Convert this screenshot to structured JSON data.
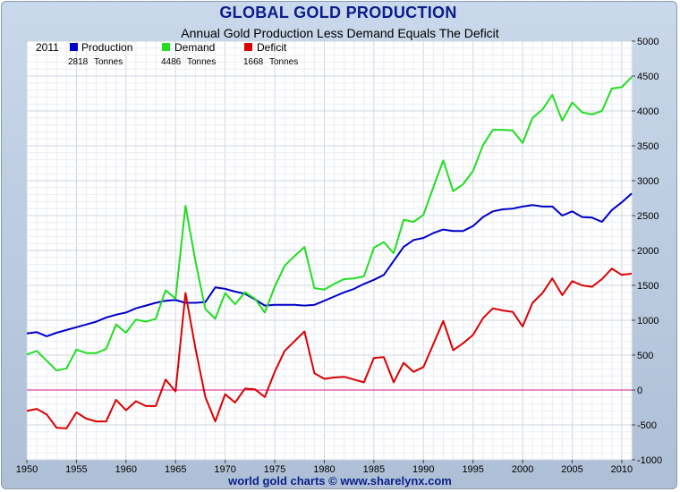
{
  "chart_data": {
    "type": "line",
    "title": "GLOBAL GOLD PRODUCTION",
    "subtitle": "Annual Gold Production Less Demand Equals The Deficit",
    "footer": "world gold charts © www.sharelynx.com",
    "legend": {
      "year": "2011",
      "unit": "Tonnes",
      "items": [
        {
          "name": "Production",
          "value": "2818",
          "color": "#0000cc"
        },
        {
          "name": "Demand",
          "value": "4486",
          "color": "#22dd22"
        },
        {
          "name": "Deficit",
          "value": "1668",
          "color": "#dd0000"
        }
      ]
    },
    "xlim": [
      1950,
      2011
    ],
    "ylim": [
      -1000,
      5000
    ],
    "x_ticks": [
      1950,
      1955,
      1960,
      1965,
      1970,
      1975,
      1980,
      1985,
      1990,
      1995,
      2000,
      2005,
      2010
    ],
    "y_ticks": [
      -1000,
      -500,
      0,
      500,
      1000,
      1500,
      2000,
      2500,
      3000,
      3500,
      4000,
      4500,
      5000
    ],
    "x": [
      1950,
      1951,
      1952,
      1953,
      1954,
      1955,
      1956,
      1957,
      1958,
      1959,
      1960,
      1961,
      1962,
      1963,
      1964,
      1965,
      1966,
      1967,
      1968,
      1969,
      1970,
      1971,
      1972,
      1973,
      1974,
      1975,
      1976,
      1977,
      1978,
      1979,
      1980,
      1981,
      1982,
      1983,
      1984,
      1985,
      1986,
      1987,
      1988,
      1989,
      1990,
      1991,
      1992,
      1993,
      1994,
      1995,
      1996,
      1997,
      1998,
      1999,
      2000,
      2001,
      2002,
      2003,
      2004,
      2005,
      2006,
      2007,
      2008,
      2009,
      2010,
      2011
    ],
    "series": [
      {
        "name": "Production",
        "color": "#0000cc",
        "values": [
          810,
          830,
          770,
          820,
          860,
          900,
          940,
          980,
          1040,
          1080,
          1110,
          1170,
          1210,
          1250,
          1280,
          1290,
          1250,
          1250,
          1260,
          1470,
          1450,
          1410,
          1380,
          1300,
          1210,
          1220,
          1220,
          1220,
          1210,
          1220,
          1280,
          1340,
          1400,
          1450,
          1520,
          1580,
          1650,
          1850,
          2050,
          2150,
          2180,
          2250,
          2300,
          2280,
          2280,
          2350,
          2480,
          2560,
          2590,
          2600,
          2630,
          2650,
          2630,
          2630,
          2500,
          2560,
          2480,
          2470,
          2410,
          2580,
          2690,
          2818
        ]
      },
      {
        "name": "Demand",
        "color": "#22dd22",
        "values": [
          510,
          560,
          420,
          280,
          310,
          580,
          530,
          530,
          590,
          940,
          820,
          1010,
          980,
          1020,
          1430,
          1310,
          2640,
          1850,
          1160,
          1020,
          1390,
          1230,
          1400,
          1310,
          1110,
          1480,
          1780,
          1920,
          2050,
          1460,
          1440,
          1520,
          1590,
          1600,
          1630,
          2040,
          2120,
          1960,
          2440,
          2410,
          2510,
          2910,
          3290,
          2850,
          2950,
          3140,
          3510,
          3730,
          3730,
          3720,
          3540,
          3900,
          4020,
          4230,
          3860,
          4120,
          3980,
          3950,
          4000,
          4320,
          4340,
          4486
        ]
      },
      {
        "name": "Deficit",
        "color": "#dd0000",
        "values": [
          -300,
          -270,
          -350,
          -540,
          -550,
          -320,
          -410,
          -450,
          -450,
          -140,
          -290,
          -160,
          -230,
          -230,
          150,
          -20,
          1390,
          600,
          -100,
          -450,
          -60,
          -180,
          20,
          10,
          -100,
          260,
          560,
          700,
          840,
          240,
          160,
          180,
          190,
          150,
          110,
          460,
          470,
          110,
          390,
          260,
          330,
          660,
          990,
          570,
          670,
          790,
          1030,
          1170,
          1140,
          1120,
          910,
          1250,
          1390,
          1600,
          1360,
          1560,
          1500,
          1480,
          1590,
          1740,
          1650,
          1668
        ]
      }
    ],
    "zero_line_color": "#dd44aa"
  }
}
